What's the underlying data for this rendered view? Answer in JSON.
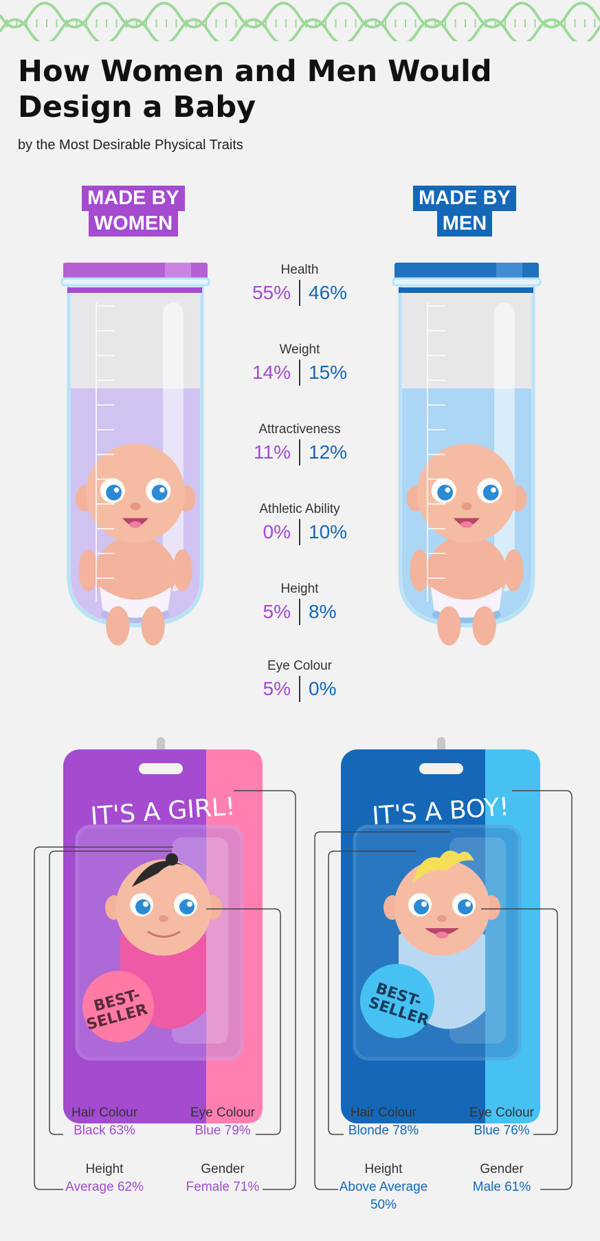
{
  "header": {
    "title": "How Women and Men Would Design a Baby",
    "subtitle": "by the Most Desirable Physical Traits"
  },
  "tags": {
    "women": [
      "MADE BY",
      "WOMEN"
    ],
    "men": [
      "MADE BY",
      "MEN"
    ]
  },
  "stats": [
    {
      "label": "Health",
      "women": "55%",
      "men": "46%"
    },
    {
      "label": "Weight",
      "women": "14%",
      "men": "15%"
    },
    {
      "label": "Attractiveness",
      "women": "11%",
      "men": "12%"
    },
    {
      "label": "Athletic Ability",
      "women": "0%",
      "men": "10%"
    },
    {
      "label": "Height",
      "women": "5%",
      "men": "8%"
    },
    {
      "label": "Eye Colour",
      "women": "5%",
      "men": "0%"
    }
  ],
  "packages": {
    "girl": {
      "title": "IT'S A GIRL!",
      "badge": [
        "BEST-",
        "SELLER"
      ],
      "hair": {
        "label": "Hair Colour",
        "value": "Black 63%"
      },
      "eye": {
        "label": "Eye Colour",
        "value": "Blue 79%"
      },
      "height": {
        "label": "Height",
        "value": "Average 62%"
      },
      "gender": {
        "label": "Gender",
        "value": "Female 71%"
      }
    },
    "boy": {
      "title": "IT'S A BOY!",
      "badge": [
        "BEST-",
        "SELLER"
      ],
      "hair": {
        "label": "Hair Colour",
        "value": "Blonde 78%"
      },
      "eye": {
        "label": "Eye Colour",
        "value": "Blue 76%"
      },
      "height": {
        "label": "Height",
        "value_lines": [
          "Above Average",
          "50%"
        ]
      },
      "gender": {
        "label": "Gender",
        "value": "Male 61%"
      }
    }
  },
  "colors": {
    "women": "#a44bd0",
    "men": "#1568b7",
    "dna": "#9fd89a",
    "girl_pink": "#ff7fb0",
    "boy_light": "#47c1f2"
  },
  "icons": [
    "dna-strand-icon",
    "test-tube-icon",
    "baby-icon",
    "toy-package-icon",
    "best-seller-badge-icon"
  ]
}
